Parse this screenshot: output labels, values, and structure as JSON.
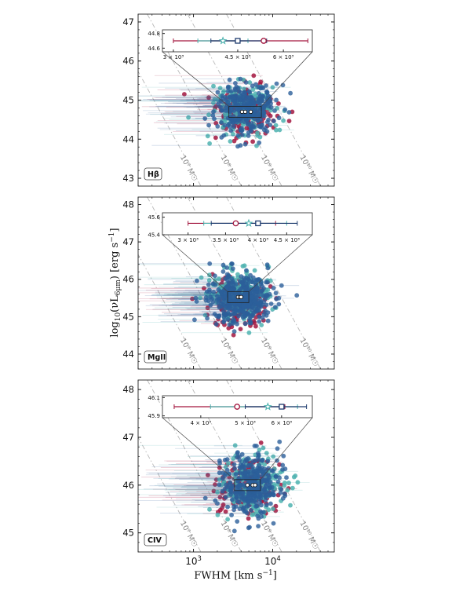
{
  "figure": {
    "ylabel_main": "log",
    "ylabel_sub": "10",
    "ylabel_rest": "(νL",
    "ylabel_sub2": "6μm",
    "ylabel_end": ") [erg s",
    "ylabel_sup": "−1",
    "ylabel_close": "]",
    "xlabel_main": "FWHM [km s",
    "xlabel_sup": "−1",
    "xlabel_close": "]",
    "colors": {
      "red": "#a3163f",
      "teal": "#4fb3b0",
      "blue": "#2c5f9a",
      "navy": "#1e3b6e"
    }
  },
  "chart_data": [
    {
      "type": "scatter",
      "panel_label": "Hβ",
      "xscale": "log",
      "xlim": [
        200,
        60000
      ],
      "ylim": [
        42.8,
        47.2
      ],
      "yticks": [
        "43",
        "44",
        "45",
        "46",
        "47"
      ],
      "xticks": [],
      "mass_lines": [
        "10⁷ M☉",
        "10⁸ M☉",
        "10⁹ M☉",
        "10¹⁰ M☉"
      ],
      "series": [
        {
          "color": "red",
          "center_fwhm": 4800,
          "center_l": 44.7,
          "count": 170
        },
        {
          "color": "teal",
          "center_fwhm": 4200,
          "center_l": 44.75,
          "count": 170
        },
        {
          "color": "blue",
          "center_fwhm": 4500,
          "center_l": 44.75,
          "count": 300
        }
      ],
      "inset": {
        "xlim": [
          2800,
          7200
        ],
        "ylim": [
          44.55,
          44.85
        ],
        "xticks": [
          {
            "v": 3000,
            "label": "3 × 10³"
          },
          {
            "v": 4500,
            "label": "4.5 × 10³"
          },
          {
            "v": 6000,
            "label": "6 × 10³"
          }
        ],
        "yticks": [
          "44.6",
          "44.8"
        ],
        "medians": [
          {
            "color": "red",
            "marker": "circle",
            "x": 5300,
            "y": 44.7,
            "lo": 3000,
            "hi": 7000
          },
          {
            "color": "teal",
            "marker": "star",
            "x": 4100,
            "y": 44.7,
            "lo": 3500,
            "hi": 4800
          },
          {
            "color": "navy",
            "marker": "square",
            "x": 4500,
            "y": 44.7,
            "lo": 3800,
            "hi": 5400
          }
        ]
      }
    },
    {
      "type": "scatter",
      "panel_label": "MgII",
      "xscale": "log",
      "xlim": [
        200,
        60000
      ],
      "ylim": [
        43.6,
        48.2
      ],
      "yticks": [
        "44",
        "45",
        "46",
        "47",
        "48"
      ],
      "xticks": [],
      "mass_lines": [
        "10⁷ M☉",
        "10⁸ M☉",
        "10⁹ M☉",
        "10¹⁰ M☉"
      ],
      "series": [
        {
          "color": "red",
          "center_fwhm": 3800,
          "center_l": 45.4,
          "count": 200
        },
        {
          "color": "teal",
          "center_fwhm": 3900,
          "center_l": 45.6,
          "count": 220
        },
        {
          "color": "blue",
          "center_fwhm": 3900,
          "center_l": 45.5,
          "count": 420
        }
      ],
      "inset": {
        "xlim": [
          2700,
          5000
        ],
        "ylim": [
          45.4,
          45.65
        ],
        "xticks": [
          {
            "v": 3000,
            "label": "3 × 10³"
          },
          {
            "v": 3500,
            "label": "3.5 × 10³"
          },
          {
            "v": 4000,
            "label": "4 × 10³"
          },
          {
            "v": 4500,
            "label": "4.5 × 10³"
          }
        ],
        "yticks": [
          "45.4",
          "45.6"
        ],
        "medians": [
          {
            "color": "red",
            "marker": "circle",
            "x": 3650,
            "y": 45.53,
            "lo": 3000,
            "hi": 4300
          },
          {
            "color": "teal",
            "marker": "star",
            "x": 3850,
            "y": 45.53,
            "lo": 3200,
            "hi": 4500
          },
          {
            "color": "navy",
            "marker": "square",
            "x": 4000,
            "y": 45.53,
            "lo": 3300,
            "hi": 4700
          }
        ]
      }
    },
    {
      "type": "scatter",
      "panel_label": "CIV",
      "xscale": "log",
      "xlim": [
        200,
        60000
      ],
      "ylim": [
        44.6,
        48.2
      ],
      "yticks": [
        "45",
        "46",
        "47",
        "48"
      ],
      "xticks": [
        {
          "v": 1000,
          "label": "10",
          "sup": "3"
        },
        {
          "v": 10000,
          "label": "10",
          "sup": "4"
        }
      ],
      "mass_lines": [
        "10⁷ M☉",
        "10⁸ M☉",
        "10⁹ M☉",
        "10¹⁰ M☉"
      ],
      "series": [
        {
          "color": "red",
          "center_fwhm": 5000,
          "center_l": 46.0,
          "count": 170
        },
        {
          "color": "teal",
          "center_fwhm": 5500,
          "center_l": 46.0,
          "count": 190
        },
        {
          "color": "blue",
          "center_fwhm": 5500,
          "center_l": 46.0,
          "count": 320
        }
      ],
      "inset": {
        "xlim": [
          3300,
          7000
        ],
        "ylim": [
          45.88,
          46.12
        ],
        "xticks": [
          {
            "v": 4000,
            "label": "4 × 10³"
          },
          {
            "v": 5000,
            "label": "5 × 10³"
          },
          {
            "v": 6000,
            "label": "6 × 10³"
          }
        ],
        "yticks": [
          "45.9",
          "46.1"
        ],
        "medians": [
          {
            "color": "red",
            "marker": "circle",
            "x": 4800,
            "y": 46.0,
            "lo": 3500,
            "hi": 6100
          },
          {
            "color": "teal",
            "marker": "star",
            "x": 5600,
            "y": 46.0,
            "lo": 4200,
            "hi": 6500
          },
          {
            "color": "navy",
            "marker": "square",
            "x": 6000,
            "y": 46.0,
            "lo": 5000,
            "hi": 6800
          }
        ]
      }
    }
  ]
}
